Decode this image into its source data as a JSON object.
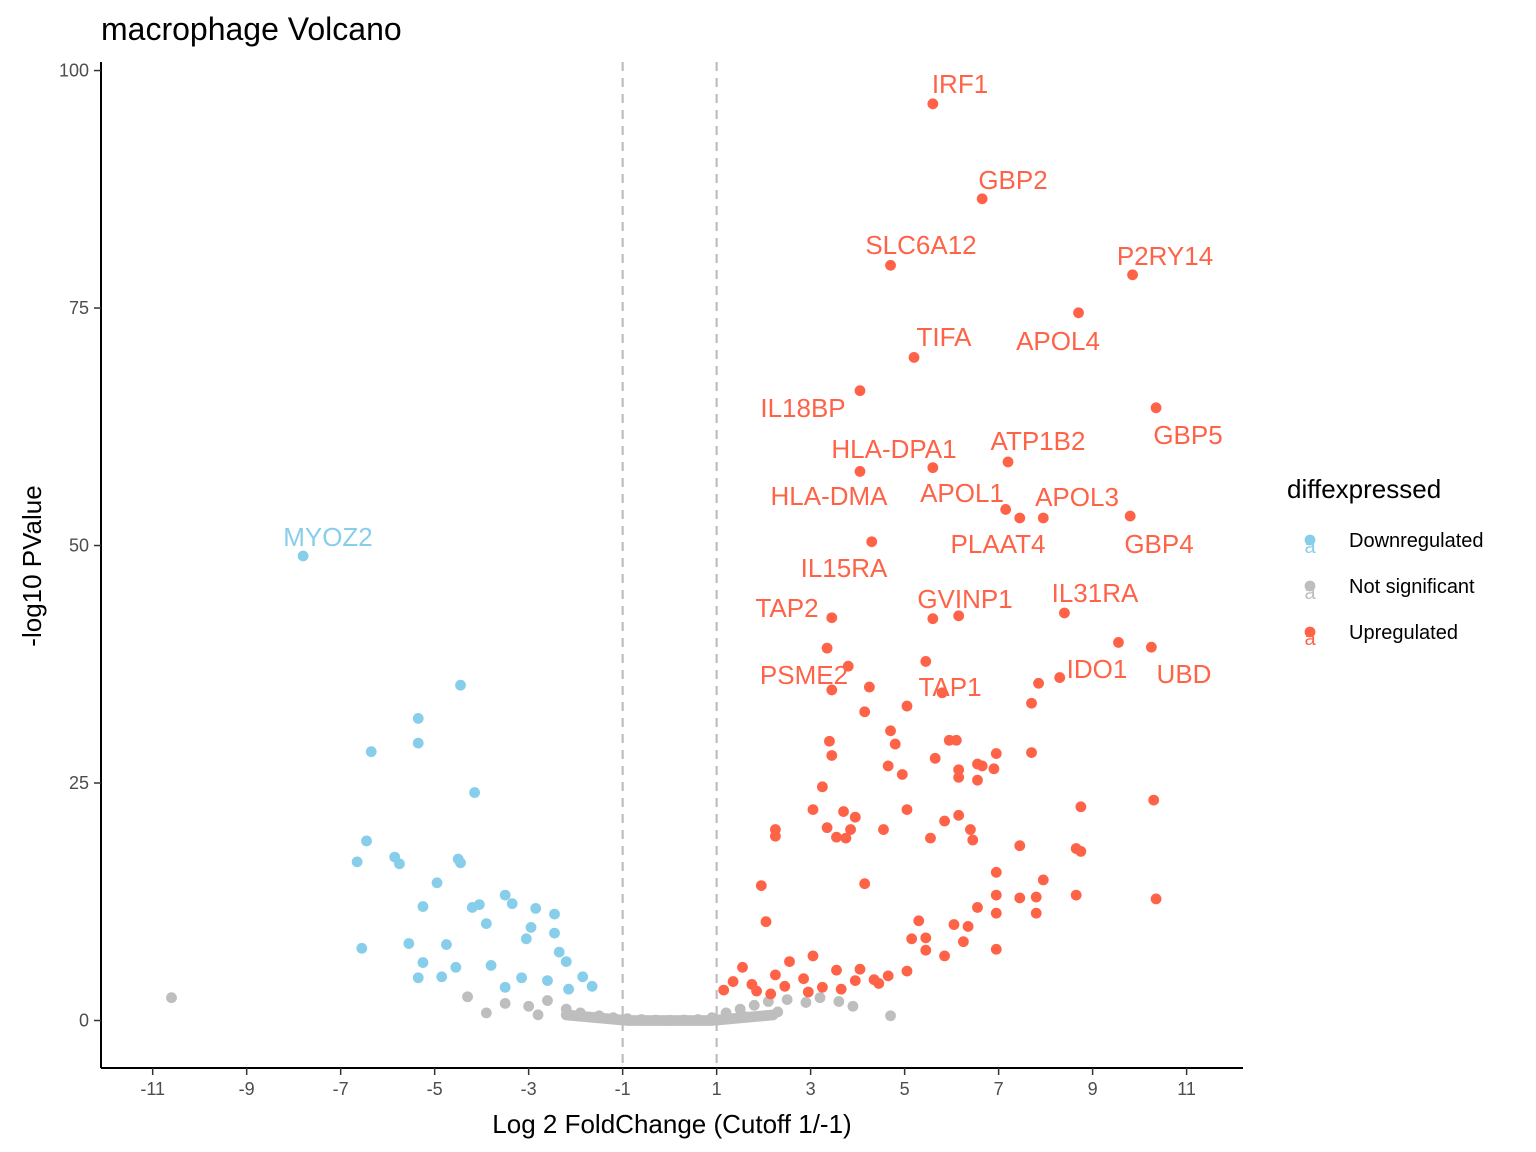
{
  "chart_data": {
    "type": "scatter",
    "title": "macrophage Volcano",
    "xlabel": "Log 2 FoldChange (Cutoff 1/-1)",
    "ylabel": "-log10 PValue",
    "xlim": [
      -12.1,
      12.2
    ],
    "ylim": [
      -5,
      100.9
    ],
    "x_ticks": [
      -11,
      -9,
      -7,
      -5,
      -3,
      -1,
      1,
      3,
      5,
      7,
      9,
      11
    ],
    "y_ticks": [
      0,
      25,
      50,
      75,
      100
    ],
    "cutoff_lines": [
      -1,
      1
    ],
    "grid": false,
    "legend": {
      "title": "diffexpressed",
      "placement": "right",
      "key_glyph": "a",
      "entries": [
        "Downregulated",
        "Not significant",
        "Upregulated"
      ]
    },
    "colors": {
      "Downregulated": "#87CEEB",
      "Not significant": "#BEBEBE",
      "Upregulated": "#FF6347"
    },
    "series": [
      {
        "name": "Upregulated",
        "points": [
          [
            5.6,
            96.5
          ],
          [
            6.65,
            86.5
          ],
          [
            4.7,
            79.5
          ],
          [
            9.85,
            78.5
          ],
          [
            8.7,
            74.5
          ],
          [
            5.2,
            69.8
          ],
          [
            4.05,
            66.3
          ],
          [
            10.35,
            64.5
          ],
          [
            7.2,
            58.8
          ],
          [
            5.6,
            58.2
          ],
          [
            4.05,
            57.8
          ],
          [
            7.15,
            53.8
          ],
          [
            7.45,
            52.9
          ],
          [
            7.95,
            52.9
          ],
          [
            9.8,
            53.1
          ],
          [
            4.3,
            50.4
          ],
          [
            8.4,
            42.9
          ],
          [
            6.15,
            42.6
          ],
          [
            5.6,
            42.3
          ],
          [
            3.45,
            42.4
          ],
          [
            9.55,
            39.8
          ],
          [
            3.35,
            39.2
          ],
          [
            10.25,
            39.3
          ],
          [
            5.45,
            37.8
          ],
          [
            3.8,
            37.3
          ],
          [
            8.3,
            36.1
          ],
          [
            7.85,
            35.5
          ],
          [
            4.25,
            35.1
          ],
          [
            3.45,
            34.8
          ],
          [
            5.8,
            34.5
          ],
          [
            7.7,
            33.4
          ],
          [
            5.05,
            33.1
          ],
          [
            4.15,
            32.5
          ],
          [
            4.7,
            30.5
          ],
          [
            5.95,
            29.5
          ],
          [
            6.1,
            29.5
          ],
          [
            3.4,
            29.4
          ],
          [
            4.8,
            29.1
          ],
          [
            7.7,
            28.2
          ],
          [
            6.95,
            28.1
          ],
          [
            3.45,
            27.9
          ],
          [
            5.65,
            27.6
          ],
          [
            6.55,
            27.0
          ],
          [
            6.65,
            26.8
          ],
          [
            4.65,
            26.8
          ],
          [
            6.15,
            26.4
          ],
          [
            6.9,
            26.5
          ],
          [
            4.95,
            25.9
          ],
          [
            6.55,
            25.3
          ],
          [
            6.15,
            25.6
          ],
          [
            3.25,
            24.6
          ],
          [
            10.3,
            23.2
          ],
          [
            8.75,
            22.5
          ],
          [
            3.05,
            22.2
          ],
          [
            5.05,
            22.2
          ],
          [
            3.7,
            22.0
          ],
          [
            3.95,
            21.4
          ],
          [
            6.15,
            21.6
          ],
          [
            5.85,
            21.0
          ],
          [
            2.25,
            20.1
          ],
          [
            3.35,
            20.3
          ],
          [
            3.85,
            20.1
          ],
          [
            4.55,
            20.1
          ],
          [
            6.4,
            20.1
          ],
          [
            2.25,
            19.4
          ],
          [
            3.55,
            19.3
          ],
          [
            3.75,
            19.2
          ],
          [
            5.55,
            19.2
          ],
          [
            6.45,
            19.0
          ],
          [
            8.65,
            18.1
          ],
          [
            7.45,
            18.4
          ],
          [
            8.75,
            17.8
          ],
          [
            6.95,
            15.6
          ],
          [
            4.15,
            14.4
          ],
          [
            1.95,
            14.2
          ],
          [
            7.95,
            14.8
          ],
          [
            6.95,
            13.2
          ],
          [
            7.45,
            12.9
          ],
          [
            7.8,
            13.0
          ],
          [
            8.65,
            13.2
          ],
          [
            10.35,
            12.8
          ],
          [
            7.8,
            11.3
          ],
          [
            6.95,
            11.3
          ],
          [
            6.55,
            11.9
          ],
          [
            2.05,
            10.4
          ],
          [
            5.3,
            10.5
          ],
          [
            6.05,
            10.1
          ],
          [
            6.35,
            9.9
          ],
          [
            5.15,
            8.6
          ],
          [
            5.45,
            8.7
          ],
          [
            6.25,
            8.3
          ],
          [
            5.45,
            7.4
          ],
          [
            5.85,
            6.8
          ],
          [
            6.95,
            7.5
          ],
          [
            4.05,
            5.4
          ],
          [
            1.55,
            5.6
          ],
          [
            2.55,
            6.2
          ],
          [
            3.05,
            6.8
          ],
          [
            3.55,
            5.3
          ],
          [
            2.25,
            4.8
          ],
          [
            2.85,
            4.4
          ],
          [
            3.95,
            4.2
          ],
          [
            4.35,
            4.3
          ],
          [
            1.35,
            4.1
          ],
          [
            1.75,
            3.8
          ],
          [
            2.45,
            3.6
          ],
          [
            3.25,
            3.5
          ],
          [
            1.15,
            3.2
          ],
          [
            1.85,
            3.1
          ],
          [
            2.95,
            3.0
          ],
          [
            3.65,
            3.3
          ],
          [
            4.65,
            4.7
          ],
          [
            5.05,
            5.2
          ],
          [
            2.15,
            2.8
          ],
          [
            4.45,
            3.9
          ]
        ]
      },
      {
        "name": "Downregulated",
        "points": [
          [
            -7.8,
            48.9
          ],
          [
            -4.45,
            35.3
          ],
          [
            -5.35,
            31.8
          ],
          [
            -5.35,
            29.2
          ],
          [
            -6.35,
            28.3
          ],
          [
            -4.15,
            24.0
          ],
          [
            -6.45,
            18.9
          ],
          [
            -5.85,
            17.2
          ],
          [
            -4.5,
            17.0
          ],
          [
            -6.65,
            16.7
          ],
          [
            -5.75,
            16.5
          ],
          [
            -4.45,
            16.6
          ],
          [
            -4.95,
            14.5
          ],
          [
            -3.5,
            13.2
          ],
          [
            -5.25,
            12.0
          ],
          [
            -4.2,
            11.9
          ],
          [
            -2.85,
            11.8
          ],
          [
            -4.05,
            12.2
          ],
          [
            -2.45,
            11.2
          ],
          [
            -3.35,
            12.3
          ],
          [
            -5.55,
            8.1
          ],
          [
            -4.75,
            8.0
          ],
          [
            -6.55,
            7.6
          ],
          [
            -5.25,
            6.1
          ],
          [
            -4.55,
            5.6
          ],
          [
            -5.35,
            4.5
          ],
          [
            -4.85,
            4.6
          ],
          [
            -3.8,
            5.8
          ],
          [
            -2.2,
            6.2
          ],
          [
            -3.05,
            8.6
          ],
          [
            -2.15,
            3.3
          ],
          [
            -2.6,
            4.2
          ],
          [
            -1.85,
            4.6
          ],
          [
            -1.65,
            3.6
          ],
          [
            -3.5,
            3.5
          ],
          [
            -3.15,
            4.5
          ],
          [
            -2.35,
            7.2
          ],
          [
            -3.9,
            10.2
          ],
          [
            -2.95,
            9.8
          ],
          [
            -2.45,
            9.2
          ]
        ]
      },
      {
        "name": "Not significant",
        "points": [
          [
            -10.6,
            2.4
          ],
          [
            4.7,
            0.5
          ],
          [
            -3.9,
            0.8
          ],
          [
            -4.3,
            2.5
          ],
          [
            -3.5,
            1.8
          ],
          [
            -3.0,
            1.5
          ],
          [
            -2.6,
            2.1
          ],
          [
            -2.2,
            1.2
          ],
          [
            -1.9,
            0.8
          ],
          [
            -1.5,
            0.5
          ],
          [
            -1.2,
            0.3
          ],
          [
            -0.9,
            0.2
          ],
          [
            -0.6,
            0.1
          ],
          [
            -0.3,
            0.05
          ],
          [
            0.0,
            0.02
          ],
          [
            0.3,
            0.05
          ],
          [
            0.6,
            0.1
          ],
          [
            0.9,
            0.3
          ],
          [
            1.2,
            0.8
          ],
          [
            1.5,
            1.2
          ],
          [
            1.8,
            1.6
          ],
          [
            2.1,
            2.0
          ],
          [
            2.5,
            2.2
          ],
          [
            2.9,
            1.9
          ],
          [
            3.2,
            2.4
          ],
          [
            3.6,
            2.0
          ],
          [
            3.9,
            1.5
          ],
          [
            2.3,
            0.9
          ],
          [
            1.6,
            0.4
          ],
          [
            -2.8,
            0.6
          ]
        ]
      }
    ],
    "annotations": [
      {
        "text": "IRF1",
        "category": "Upregulated"
      },
      {
        "text": "GBP2",
        "category": "Upregulated"
      },
      {
        "text": "SLC6A12",
        "category": "Upregulated"
      },
      {
        "text": "P2RY14",
        "category": "Upregulated"
      },
      {
        "text": "APOL4",
        "category": "Upregulated"
      },
      {
        "text": "TIFA",
        "category": "Upregulated"
      },
      {
        "text": "IL18BP",
        "category": "Upregulated"
      },
      {
        "text": "GBP5",
        "category": "Upregulated"
      },
      {
        "text": "ATP1B2",
        "category": "Upregulated"
      },
      {
        "text": "HLA-DPA1",
        "category": "Upregulated"
      },
      {
        "text": "HLA-DMA",
        "category": "Upregulated"
      },
      {
        "text": "APOL1",
        "category": "Upregulated"
      },
      {
        "text": "APOL3",
        "category": "Upregulated"
      },
      {
        "text": "PLAAT4",
        "category": "Upregulated"
      },
      {
        "text": "GBP4",
        "category": "Upregulated"
      },
      {
        "text": "IL15RA",
        "category": "Upregulated"
      },
      {
        "text": "TAP2",
        "category": "Upregulated"
      },
      {
        "text": "GVINP1",
        "category": "Upregulated"
      },
      {
        "text": "IL31RA",
        "category": "Upregulated"
      },
      {
        "text": "PSME2",
        "category": "Upregulated"
      },
      {
        "text": "TAP1",
        "category": "Upregulated"
      },
      {
        "text": "IDO1",
        "category": "Upregulated"
      },
      {
        "text": "UBD",
        "category": "Upregulated"
      },
      {
        "text": "MYOZ2",
        "category": "Downregulated"
      }
    ]
  }
}
